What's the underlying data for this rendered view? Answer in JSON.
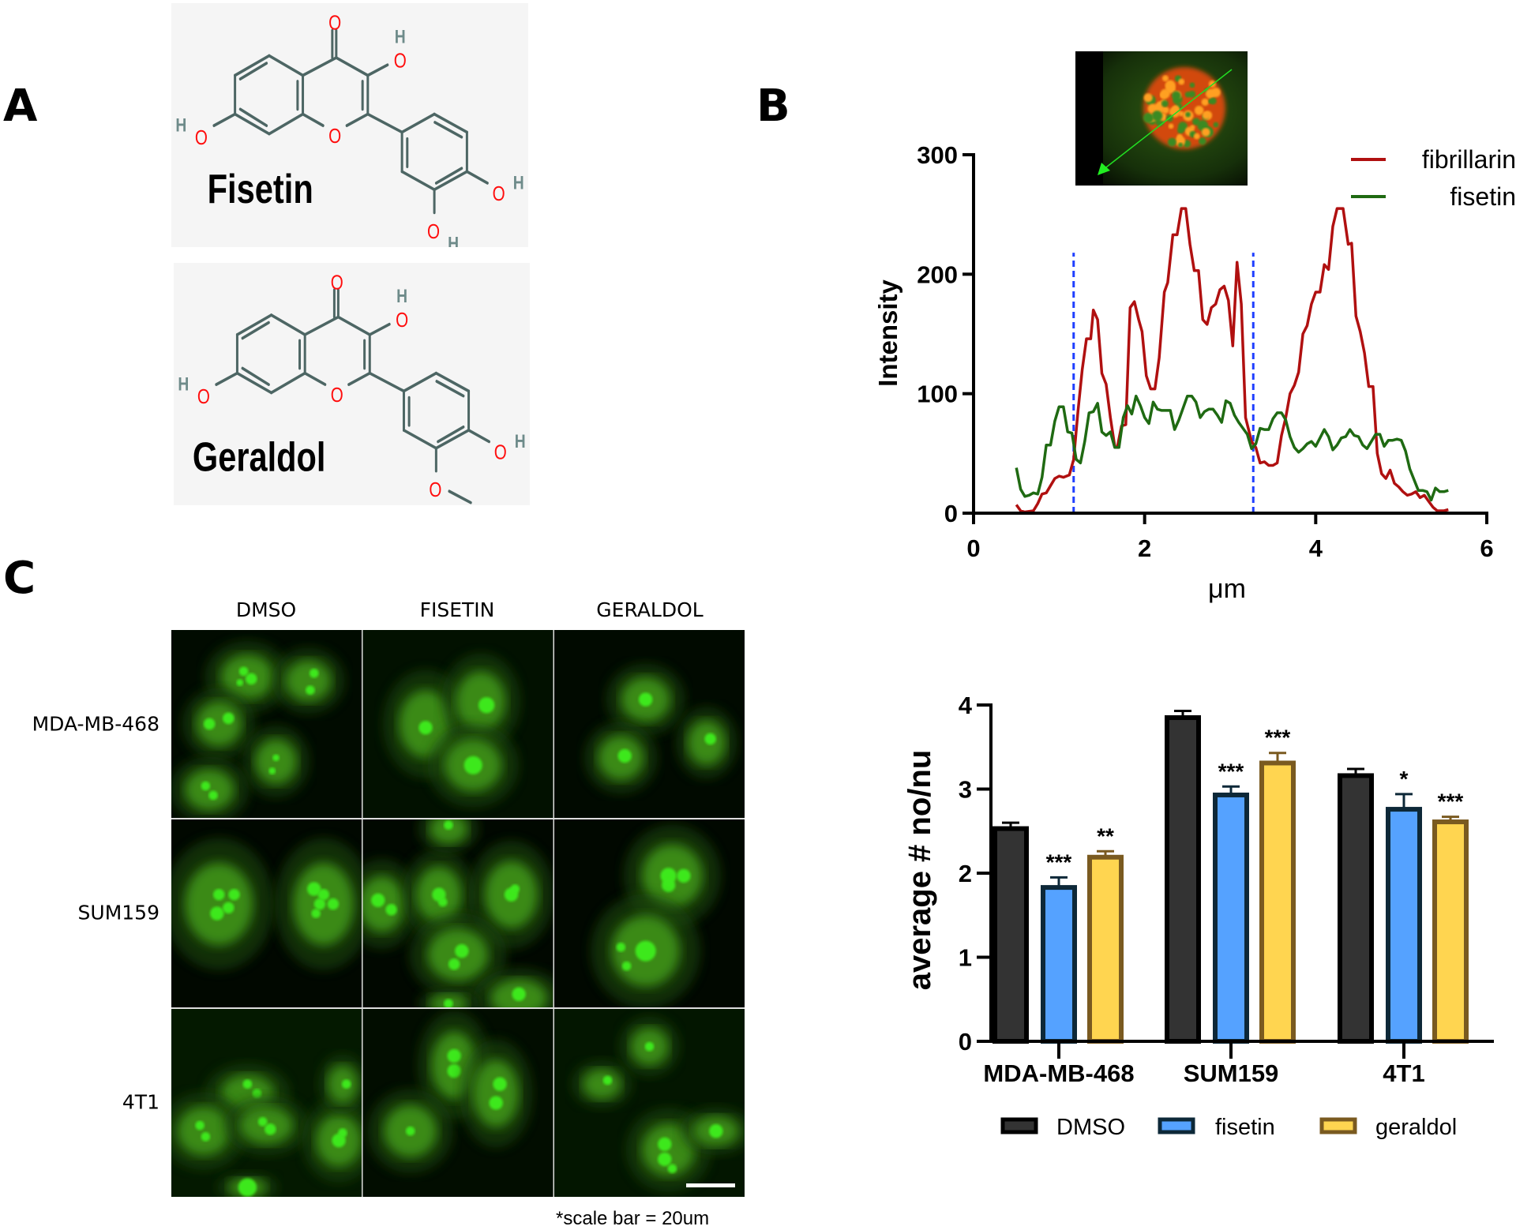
{
  "panels": {
    "a": "A",
    "b": "B",
    "c": "C"
  },
  "structures": {
    "fisetin_name": "Fisetin",
    "geraldol_name": "Geraldol",
    "atom_o": "O",
    "atom_h": "H",
    "bond_color": "#4d6664",
    "oxygen_color": "#ff0d0d",
    "hydrogen_color": "#6e8b8a"
  },
  "microscopy": {
    "columns": [
      "DMSO",
      "FISETIN",
      "GERALDOL"
    ],
    "rows": [
      "MDA-MB-468",
      "SUM159",
      "4T1"
    ],
    "scale_note": "*scale bar = 20um"
  },
  "chart_data": [
    {
      "type": "line",
      "title": "",
      "xlabel": "μm",
      "ylabel": "Intensity",
      "xlim": [
        0,
        6
      ],
      "ylim": [
        0,
        300
      ],
      "xticks": [
        "0",
        "2",
        "4",
        "6"
      ],
      "yticks": [
        "0",
        "100",
        "200",
        "300"
      ],
      "legend_position": "top-right",
      "grid": false,
      "vertical_markers": [
        1.17,
        3.27
      ],
      "vertical_marker_color": "#1f3fff",
      "series": [
        {
          "name": "fibrillarin",
          "color": "#b01010",
          "x": [
            0.5,
            0.55,
            0.6,
            0.7,
            0.75,
            0.8,
            0.85,
            0.9,
            0.95,
            1.0,
            1.05,
            1.12,
            1.17,
            1.22,
            1.27,
            1.32,
            1.37,
            1.4,
            1.45,
            1.5,
            1.55,
            1.6,
            1.65,
            1.68,
            1.73,
            1.78,
            1.83,
            1.88,
            1.93,
            1.97,
            2.02,
            2.07,
            2.12,
            2.17,
            2.23,
            2.27,
            2.33,
            2.38,
            2.43,
            2.48,
            2.53,
            2.58,
            2.63,
            2.68,
            2.73,
            2.78,
            2.83,
            2.88,
            2.93,
            2.98,
            3.03,
            3.08,
            3.13,
            3.18,
            3.25,
            3.3,
            3.35,
            3.4,
            3.45,
            3.5,
            3.55,
            3.6,
            3.65,
            3.7,
            3.75,
            3.8,
            3.85,
            3.9,
            3.95,
            4.0,
            4.05,
            4.1,
            4.15,
            4.2,
            4.25,
            4.32,
            4.38,
            4.42,
            4.47,
            4.52,
            4.57,
            4.62,
            4.67,
            4.72,
            4.77,
            4.82,
            4.87,
            4.92,
            4.97,
            5.02,
            5.07,
            5.12,
            5.17,
            5.22,
            5.27,
            5.32,
            5.37,
            5.42,
            5.5,
            5.55
          ],
          "y": [
            7,
            2,
            1,
            2,
            8,
            16,
            17,
            23,
            29,
            31,
            30,
            32,
            45,
            85,
            120,
            146,
            146,
            170,
            162,
            117,
            108,
            80,
            56,
            55,
            73,
            74,
            172,
            177,
            162,
            152,
            115,
            104,
            104,
            130,
            185,
            193,
            233,
            233,
            255,
            255,
            225,
            203,
            203,
            162,
            158,
            172,
            175,
            187,
            190,
            178,
            140,
            210,
            175,
            80,
            60,
            55,
            42,
            43,
            40,
            40,
            42,
            65,
            80,
            100,
            107,
            118,
            150,
            157,
            175,
            185,
            185,
            208,
            204,
            240,
            255,
            255,
            225,
            226,
            165,
            152,
            134,
            106,
            106,
            50,
            33,
            29,
            36,
            25,
            22,
            18,
            15,
            16,
            18,
            13,
            15,
            10,
            5,
            2,
            2,
            3
          ]
        },
        {
          "name": "fisetin",
          "color": "#1f6a12",
          "x": [
            0.5,
            0.55,
            0.6,
            0.65,
            0.7,
            0.75,
            0.8,
            0.85,
            0.9,
            0.95,
            1.0,
            1.05,
            1.1,
            1.15,
            1.2,
            1.25,
            1.3,
            1.35,
            1.4,
            1.45,
            1.5,
            1.55,
            1.6,
            1.65,
            1.7,
            1.75,
            1.8,
            1.85,
            1.9,
            1.95,
            2.0,
            2.05,
            2.1,
            2.15,
            2.2,
            2.3,
            2.35,
            2.4,
            2.45,
            2.5,
            2.55,
            2.6,
            2.65,
            2.7,
            2.75,
            2.8,
            2.85,
            2.9,
            2.95,
            3.0,
            3.05,
            3.1,
            3.15,
            3.2,
            3.25,
            3.3,
            3.35,
            3.4,
            3.45,
            3.5,
            3.55,
            3.6,
            3.65,
            3.7,
            3.75,
            3.8,
            3.85,
            3.9,
            3.95,
            4.0,
            4.05,
            4.1,
            4.15,
            4.2,
            4.25,
            4.3,
            4.35,
            4.4,
            4.45,
            4.5,
            4.55,
            4.6,
            4.65,
            4.7,
            4.75,
            4.8,
            4.85,
            4.9,
            4.95,
            5.0,
            5.05,
            5.1,
            5.15,
            5.2,
            5.25,
            5.3,
            5.35,
            5.4,
            5.45,
            5.5,
            5.55
          ],
          "y": [
            38,
            20,
            14,
            15,
            17,
            16,
            30,
            57,
            57,
            77,
            89,
            89,
            68,
            67,
            45,
            42,
            60,
            84,
            85,
            92,
            68,
            65,
            68,
            55,
            55,
            80,
            90,
            83,
            98,
            90,
            80,
            75,
            93,
            87,
            86,
            86,
            70,
            78,
            88,
            98,
            98,
            93,
            80,
            85,
            87,
            87,
            82,
            76,
            94,
            92,
            82,
            76,
            71,
            66,
            54,
            58,
            71,
            70,
            70,
            79,
            84,
            84,
            78,
            64,
            55,
            51,
            54,
            58,
            60,
            56,
            63,
            70,
            64,
            53,
            57,
            63,
            64,
            70,
            65,
            64,
            57,
            54,
            60,
            66,
            66,
            56,
            61,
            61,
            62,
            61,
            52,
            37,
            28,
            19,
            19,
            18,
            11,
            21,
            18,
            18,
            19
          ]
        }
      ]
    },
    {
      "type": "bar",
      "title": "",
      "xlabel": "",
      "ylabel": "average # no/nu",
      "ylim": [
        0,
        4
      ],
      "yticks": [
        "0",
        "1",
        "2",
        "3",
        "4"
      ],
      "categories": [
        "MDA-MB-468",
        "SUM159",
        "4T1"
      ],
      "legend_position": "bottom",
      "grid": false,
      "series": [
        {
          "name": "DMSO",
          "fill": "#333333",
          "stroke": "#000000",
          "values": [
            2.53,
            3.85,
            3.16
          ],
          "errors": [
            0.07,
            0.08,
            0.08
          ],
          "significance": [
            "",
            "",
            ""
          ]
        },
        {
          "name": "fisetin",
          "fill": "#55a2ff",
          "stroke": "#0d2838",
          "values": [
            1.83,
            2.93,
            2.76
          ],
          "errors": [
            0.12,
            0.1,
            0.18
          ],
          "significance": [
            "***",
            "***",
            "*"
          ]
        },
        {
          "name": "geraldol",
          "fill": "#ffd550",
          "stroke": "#7a5a20",
          "values": [
            2.19,
            3.31,
            2.61
          ],
          "errors": [
            0.07,
            0.12,
            0.06
          ],
          "significance": [
            "**",
            "***",
            "***"
          ]
        }
      ]
    }
  ]
}
